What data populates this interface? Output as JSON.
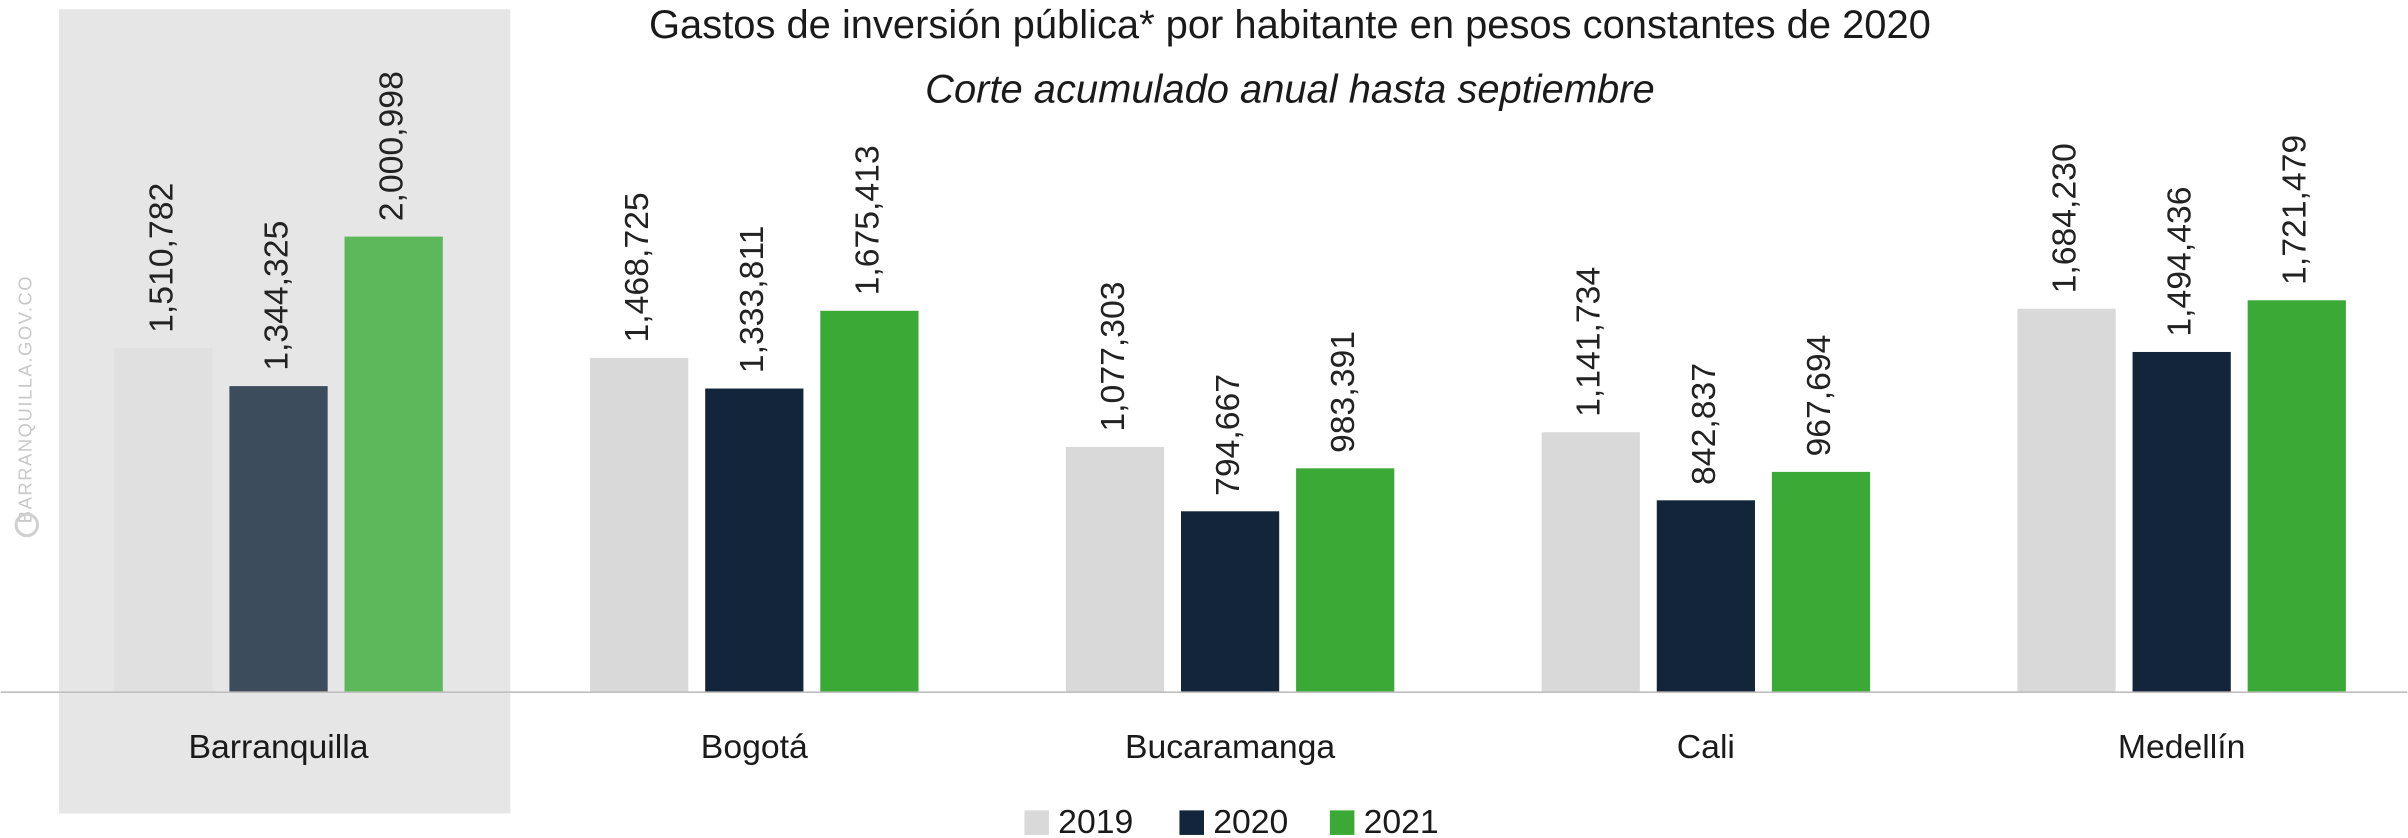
{
  "chart_data": {
    "type": "bar",
    "title": "Gastos de inversión pública* por habitante en pesos constantes de 2020",
    "subtitle": "Corte acumulado anual hasta septiembre",
    "watermark": "BARRANQUILLA.GOV.CO",
    "categories": [
      "Barranquilla",
      "Bogotá",
      "Bucaramanga",
      "Cali",
      "Medellín"
    ],
    "highlight": "Barranquilla",
    "ylim": [
      0,
      3000000
    ],
    "legend": "bottom",
    "series": [
      {
        "name": "2019",
        "color": "#d9d9d9",
        "values": [
          1510782,
          1468725,
          1077303,
          1141734,
          1684230
        ],
        "value_labels": [
          "1,510,782",
          "1,468,725",
          "1,077,303",
          "1,141,734",
          "1,684,230"
        ]
      },
      {
        "name": "2020",
        "color": "#13253a",
        "values": [
          1344325,
          1333811,
          794667,
          842837,
          1494436
        ],
        "value_labels": [
          "1,344,325",
          "1,333,811",
          "794,667",
          "842,837",
          "1,494,436"
        ]
      },
      {
        "name": "2021",
        "color": "#3aa935",
        "values": [
          2000998,
          1675413,
          983391,
          967694,
          1721479
        ],
        "value_labels": [
          "2,000,998",
          "1,675,413",
          "983,391",
          "967,694",
          "1,721,479"
        ]
      }
    ]
  }
}
